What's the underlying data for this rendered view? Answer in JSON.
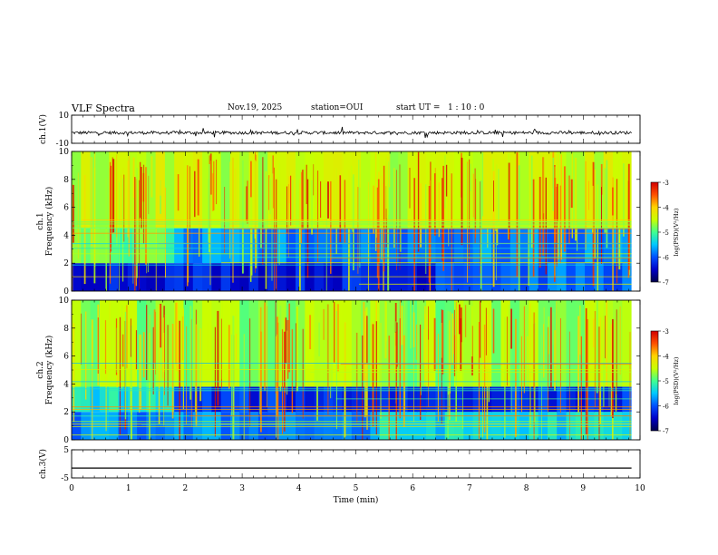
{
  "header": {
    "title": "VLF Spectra",
    "date": "Nov.19, 2025",
    "station": "station=OUI",
    "start_ut": "start UT =   1 : 10 : 0"
  },
  "colors": {
    "colormap": [
      "#00004a",
      "#0000c8",
      "#0050ff",
      "#00c8ff",
      "#40ff90",
      "#c8ff00",
      "#ffd400",
      "#ff5000",
      "#d20000"
    ],
    "axis": "#000000",
    "trace": "#000000"
  },
  "chart_data": [
    {
      "type": "line",
      "panel": "ch1-waveform",
      "ylabel": "ch.1(V)",
      "ylim": [
        -10,
        10
      ],
      "yticks": [
        "10",
        "-10"
      ],
      "approx_level": -2.5,
      "xlim": [
        0,
        10
      ]
    },
    {
      "type": "heatmap",
      "panel": "ch1-spectrogram",
      "ylabel_channel": "ch.1",
      "ylabel": "Frequency (kHz)",
      "ylim": [
        0,
        10
      ],
      "yticks": [
        "0",
        "2",
        "4",
        "6",
        "8",
        "10"
      ],
      "xlim": [
        0,
        9.85
      ],
      "colorbar": {
        "label": "log(PSD)(V²/Hz)",
        "range": [
          -7,
          -3
        ],
        "ticks": [
          "-3",
          "-4",
          "-5",
          "-6",
          "-7"
        ]
      },
      "regime_change_min": [
        1.7,
        6.3
      ],
      "bands": [
        {
          "from_khz": 0,
          "to_khz": 2,
          "level": -6.3
        },
        {
          "from_khz": 2,
          "to_khz": 4.5,
          "level": -5.8
        },
        {
          "from_khz": 4.5,
          "to_khz": 10,
          "level": -4.5
        }
      ]
    },
    {
      "type": "heatmap",
      "panel": "ch2-spectrogram",
      "ylabel_channel": "ch.2",
      "ylabel": "Frequency (kHz)",
      "ylim": [
        0,
        10
      ],
      "yticks": [
        "0",
        "2",
        "4",
        "6",
        "8",
        "10"
      ],
      "xlim": [
        0,
        9.85
      ],
      "colorbar": {
        "label": "log(PSD)(V²/Hz)",
        "range": [
          -7,
          -3
        ],
        "ticks": [
          "-3",
          "-4",
          "-5",
          "-6",
          "-7"
        ]
      },
      "regime_change_min": [
        1.7,
        5.3
      ],
      "bands": [
        {
          "from_khz": 0,
          "to_khz": 2,
          "level": -5.8
        },
        {
          "from_khz": 2,
          "to_khz": 3.8,
          "level": -6.2
        },
        {
          "from_khz": 3.8,
          "to_khz": 10,
          "level": -4.7
        }
      ]
    },
    {
      "type": "line",
      "panel": "ch3-waveform",
      "ylabel": "ch.3(V)",
      "ylim": [
        -5,
        5
      ],
      "yticks": [
        "5",
        "-5"
      ],
      "approx_level": -1.5,
      "xlim": [
        0,
        10
      ]
    }
  ],
  "x_axis": {
    "label": "Time (min)",
    "ticks": [
      "0",
      "1",
      "2",
      "3",
      "4",
      "5",
      "6",
      "7",
      "8",
      "9",
      "10"
    ]
  }
}
